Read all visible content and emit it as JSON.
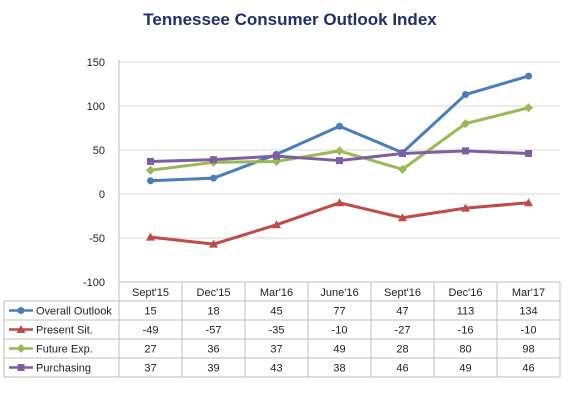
{
  "chart_data": {
    "type": "line",
    "title": "Tennessee Consumer Outlook Index",
    "categories": [
      "Sept'15",
      "Dec'15",
      "Mar'16",
      "June'16",
      "Sept'16",
      "Dec'16",
      "Mar'17"
    ],
    "ylim": [
      -100,
      150
    ],
    "yticks": [
      150,
      100,
      50,
      0,
      -50,
      -100
    ],
    "grid": true,
    "legend": "data-table",
    "series": [
      {
        "name": "Overall Outlook",
        "values": [
          15,
          18,
          45,
          77,
          47,
          113,
          134
        ],
        "color": "#4a7ebb",
        "marker": "circle"
      },
      {
        "name": "Present Sit.",
        "values": [
          -49,
          -57,
          -35,
          -10,
          -27,
          -16,
          -10
        ],
        "color": "#be4b48",
        "marker": "triangle"
      },
      {
        "name": "Future Exp.",
        "values": [
          27,
          36,
          37,
          49,
          28,
          80,
          98
        ],
        "color": "#98b954",
        "marker": "diamond"
      },
      {
        "name": "Purchasing",
        "values": [
          37,
          39,
          43,
          38,
          46,
          49,
          46
        ],
        "color": "#7d5fa0",
        "marker": "square"
      }
    ]
  }
}
